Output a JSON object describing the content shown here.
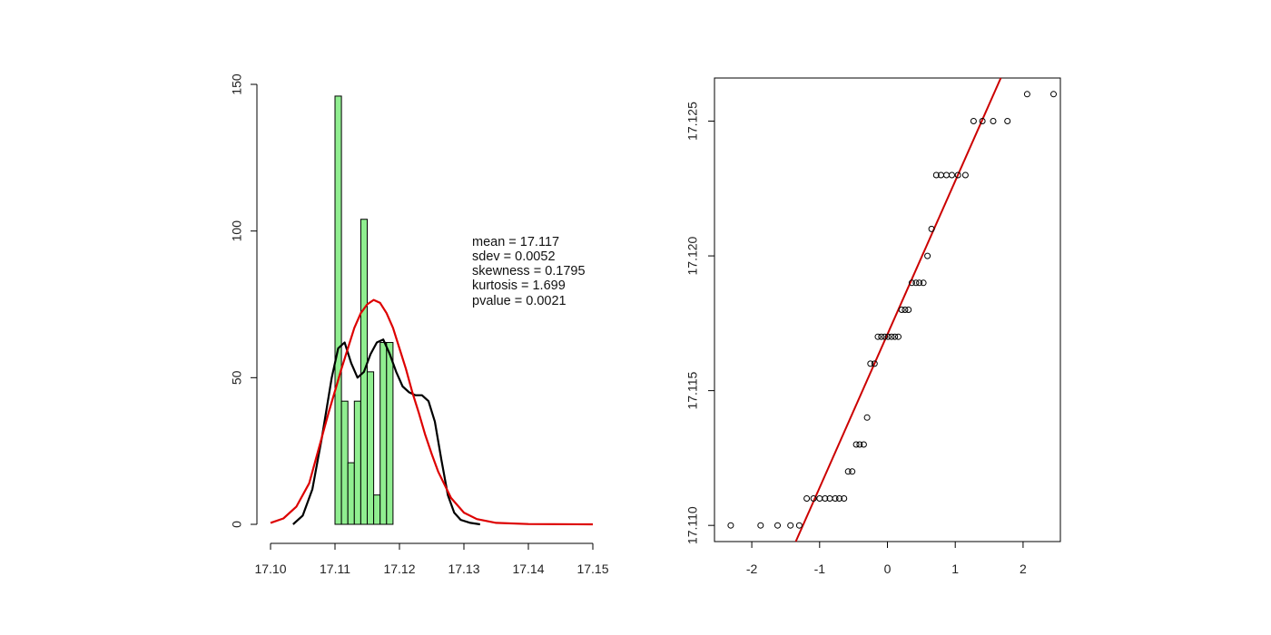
{
  "chart_data": [
    {
      "type": "bar",
      "subtype": "histogram-with-density",
      "title": "",
      "xlabel": "",
      "ylabel": "",
      "xlim": [
        17.1,
        17.15
      ],
      "ylim": [
        0,
        150
      ],
      "x_ticks": [
        "17.10",
        "17.11",
        "17.12",
        "17.13",
        "17.14",
        "17.15"
      ],
      "y_ticks": [
        "0",
        "50",
        "100",
        "150"
      ],
      "bins": [
        {
          "start": 17.11,
          "end": 17.111,
          "value": 146
        },
        {
          "start": 17.111,
          "end": 17.112,
          "value": 42
        },
        {
          "start": 17.112,
          "end": 17.113,
          "value": 21
        },
        {
          "start": 17.113,
          "end": 17.114,
          "value": 42
        },
        {
          "start": 17.114,
          "end": 17.115,
          "value": 104
        },
        {
          "start": 17.115,
          "end": 17.116,
          "value": 52
        },
        {
          "start": 17.116,
          "end": 17.117,
          "value": 10
        },
        {
          "start": 17.117,
          "end": 17.118,
          "value": 62
        },
        {
          "start": 17.118,
          "end": 17.119,
          "value": 62
        }
      ],
      "bar_color": "#90ee90",
      "series": [
        {
          "kind": "kernel-density",
          "color": "#000000",
          "x": [
            17.1035,
            17.105,
            17.1065,
            17.108,
            17.1095,
            17.1105,
            17.1115,
            17.1125,
            17.1135,
            17.1145,
            17.1155,
            17.1165,
            17.1175,
            17.1185,
            17.1195,
            17.1205,
            17.1215,
            17.1225,
            17.1235,
            17.1245,
            17.1255,
            17.1265,
            17.1275,
            17.1285,
            17.1295,
            17.131,
            17.1325
          ],
          "y": [
            0,
            3,
            12,
            30,
            50,
            60,
            62,
            55,
            50,
            52,
            58,
            62,
            63,
            58,
            52,
            47,
            45,
            44,
            44,
            42,
            35,
            22,
            10,
            4,
            1.5,
            0.5,
            0
          ]
        },
        {
          "kind": "normal-density",
          "color": "#dd0000",
          "x": [
            17.1,
            17.102,
            17.104,
            17.106,
            17.108,
            17.109,
            17.11,
            17.111,
            17.112,
            17.113,
            17.114,
            17.115,
            17.116,
            17.117,
            17.118,
            17.119,
            17.12,
            17.121,
            17.122,
            17.123,
            17.124,
            17.125,
            17.126,
            17.128,
            17.13,
            17.132,
            17.135,
            17.14,
            17.15
          ],
          "y": [
            0.5,
            2,
            6,
            14,
            30,
            38,
            45.5,
            53,
            60,
            67,
            72,
            75,
            76.5,
            75.5,
            72,
            67,
            60,
            53,
            45,
            38,
            30.5,
            24,
            18,
            9,
            4,
            1.8,
            0.5,
            0.1,
            0
          ]
        }
      ],
      "annotations": [
        "mean = 17.117",
        "sdev = 0.0052",
        "skewness = 0.1795",
        "kurtosis = 1.699",
        "pvalue = 0.0021"
      ]
    },
    {
      "type": "scatter",
      "subtype": "normal-qq-plot",
      "title": "",
      "xlabel": "",
      "ylabel": "",
      "xlim": [
        -2.55,
        2.55
      ],
      "ylim": [
        17.1094,
        17.1266
      ],
      "x_ticks": [
        "-2",
        "-1",
        "0",
        "1",
        "2"
      ],
      "y_ticks": [
        "17.110",
        "17.115",
        "17.120",
        "17.125"
      ],
      "points": {
        "x": [
          -2.31,
          -1.87,
          -1.62,
          -1.43,
          -1.3,
          -1.19,
          -1.09,
          -1.0,
          -0.92,
          -0.85,
          -0.77,
          -0.71,
          -0.64,
          -0.58,
          -0.52,
          -0.46,
          -0.41,
          -0.35,
          -0.3,
          -0.25,
          -0.19,
          -0.14,
          -0.09,
          -0.04,
          0.01,
          0.06,
          0.11,
          0.16,
          0.21,
          0.26,
          0.31,
          0.36,
          0.42,
          0.47,
          0.53,
          0.59,
          0.65,
          0.72,
          0.79,
          0.87,
          0.95,
          1.04,
          1.15,
          1.27,
          1.4,
          1.56,
          1.77,
          2.06,
          2.45
        ],
        "y": [
          17.11,
          17.11,
          17.11,
          17.11,
          17.11,
          17.111,
          17.111,
          17.111,
          17.111,
          17.111,
          17.111,
          17.111,
          17.111,
          17.112,
          17.112,
          17.113,
          17.113,
          17.113,
          17.114,
          17.116,
          17.116,
          17.117,
          17.117,
          17.117,
          17.117,
          17.117,
          17.117,
          17.117,
          17.118,
          17.118,
          17.118,
          17.119,
          17.119,
          17.119,
          17.119,
          17.12,
          17.121,
          17.123,
          17.123,
          17.123,
          17.123,
          17.123,
          17.123,
          17.125,
          17.125,
          17.125,
          17.125,
          17.126,
          17.126
        ]
      },
      "reference_line": {
        "color": "#cc0000",
        "intercept": 17.11709,
        "slope": 0.00569
      }
    }
  ]
}
